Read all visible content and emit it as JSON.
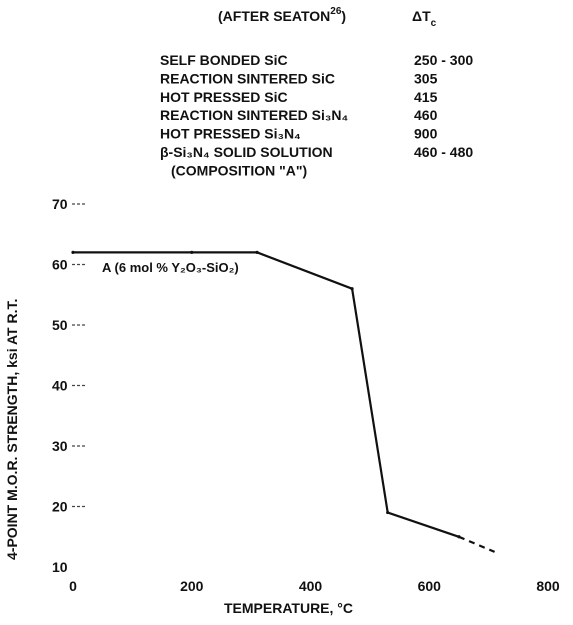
{
  "chart_data": {
    "type": "line",
    "xlabel": "TEMPERATURE, °C",
    "ylabel": "4-POINT M.O.R. STRENGTH, ksi AT R.T.",
    "xlim": [
      0,
      800
    ],
    "ylim": [
      10,
      70
    ],
    "x_ticks": [
      "0",
      "200",
      "400",
      "600",
      "800"
    ],
    "y_ticks": [
      "10",
      "20",
      "30",
      "40",
      "50",
      "60",
      "70"
    ],
    "grid": false,
    "series": [
      {
        "name": "A (6 mol % Y₂O₃-SiO₂)",
        "x": [
          0,
          200,
          310,
          470,
          530,
          650
        ],
        "y": [
          62,
          62,
          62,
          56,
          19,
          15
        ],
        "extrapolated": {
          "x": [
            650,
            710
          ],
          "y": [
            15,
            12.5
          ]
        }
      }
    ],
    "thermal_shock_table": {
      "source_label": "(AFTER SEATON",
      "source_ref": "26",
      "source_close": ")",
      "delta_label": "ΔT",
      "delta_sub": "c",
      "rows": [
        {
          "material": "SELF BONDED SiC",
          "value": "250 - 300"
        },
        {
          "material": "REACTION SINTERED SiC",
          "value": "305"
        },
        {
          "material": "HOT PRESSED SiC",
          "value": "415"
        },
        {
          "material": "REACTION SINTERED Si₃N₄",
          "value": "460"
        },
        {
          "material": "HOT PRESSED Si₃N₄",
          "value": "900"
        },
        {
          "material": "β-Si₃N₄ SOLID SOLUTION",
          "value": "460 - 480"
        },
        {
          "material": "(COMPOSITION \"A\")",
          "value": ""
        }
      ]
    }
  }
}
